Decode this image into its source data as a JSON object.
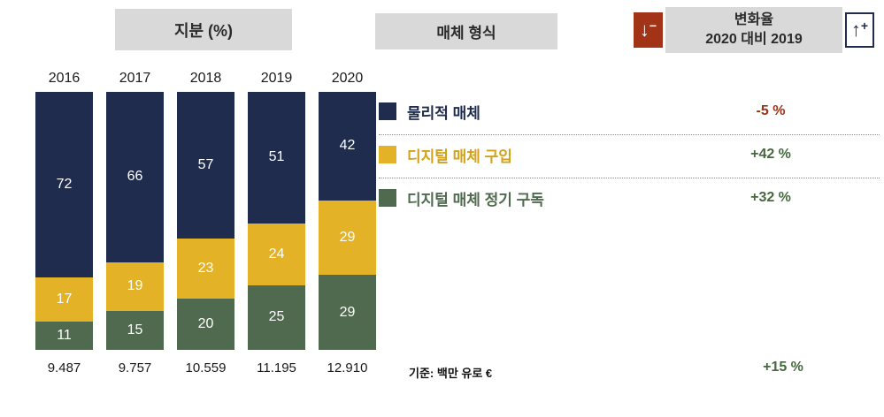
{
  "headers": {
    "share": "지분 (%)",
    "media_type": "매체 형식",
    "change_line1": "변화율",
    "change_line2": "2020 대비 2019"
  },
  "icons": {
    "down_arrow": "↓",
    "minus": "−",
    "up_arrow": "↑",
    "plus": "+"
  },
  "colors": {
    "header_bg": "#d9d9d9",
    "navy": "#1f2c4e",
    "gold": "#e4b226",
    "green": "#4f6a4f",
    "negative_red": "#9c3116",
    "positive_green": "#46683e",
    "down_icon_bg": "#a23317"
  },
  "chart_data": {
    "type": "bar",
    "stacked": true,
    "title": "지분 (%)",
    "categories": [
      "2016",
      "2017",
      "2018",
      "2019",
      "2020"
    ],
    "series": [
      {
        "name": "물리적 매체",
        "values": [
          72,
          66,
          57,
          51,
          42
        ],
        "color": "#1f2c4e",
        "label_color": "#1f2c4e",
        "change": "-5 %",
        "change_color": "#9c3116"
      },
      {
        "name": "디지털 매체 구입",
        "values": [
          17,
          19,
          23,
          24,
          29
        ],
        "color": "#e4b226",
        "label_color": "#d2a21c",
        "change": "+42 %",
        "change_color": "#46683e"
      },
      {
        "name": "디지털 매체 정기 구독",
        "values": [
          11,
          15,
          20,
          25,
          29
        ],
        "color": "#4f6a4f",
        "label_color": "#4f6a4f",
        "change": "+32 %",
        "change_color": "#46683e"
      }
    ],
    "totals": [
      "9.487",
      "9.757",
      "10.559",
      "11.195",
      "12.910"
    ],
    "total_change": "+15 %",
    "unit_note": "기준: 백만 유로 €",
    "ylim": [
      0,
      100
    ],
    "legend_position": "right"
  }
}
